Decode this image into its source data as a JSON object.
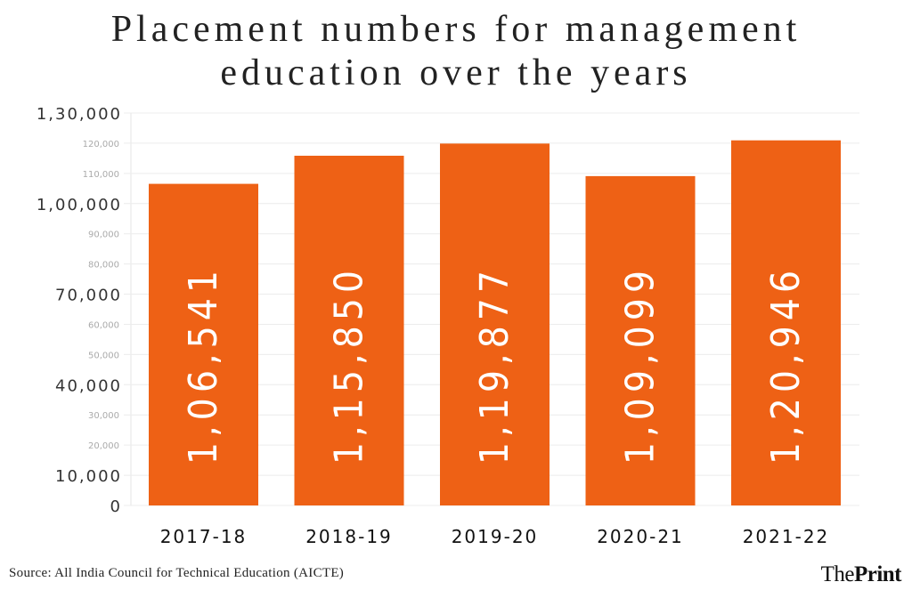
{
  "chart_data": {
    "type": "bar",
    "title": "Placement numbers for management education over the years",
    "title_lines": [
      "Placement numbers for management",
      "education over the years"
    ],
    "categories": [
      "2017-18",
      "2018-19",
      "2019-20",
      "2020-21",
      "2021-22"
    ],
    "values": [
      106541,
      115850,
      119877,
      109099,
      120946
    ],
    "data_labels": [
      "1,06,541",
      "1,15,850",
      "1,19,877",
      "1,09,099",
      "1,20,946"
    ],
    "xlabel": "",
    "ylabel": "",
    "ylim": [
      0,
      130000
    ],
    "y_ticks": [
      {
        "value": 0,
        "label": "0",
        "major": true
      },
      {
        "value": 10000,
        "label": "10,000",
        "major": true
      },
      {
        "value": 20000,
        "label": "20,000",
        "major": false
      },
      {
        "value": 30000,
        "label": "30,000",
        "major": false
      },
      {
        "value": 40000,
        "label": "40,000",
        "major": true
      },
      {
        "value": 50000,
        "label": "50,000",
        "major": false
      },
      {
        "value": 60000,
        "label": "60,000",
        "major": false
      },
      {
        "value": 70000,
        "label": "70,000",
        "major": true
      },
      {
        "value": 80000,
        "label": "80,000",
        "major": false
      },
      {
        "value": 90000,
        "label": "90,000",
        "major": false
      },
      {
        "value": 100000,
        "label": "1,00,000",
        "major": true
      },
      {
        "value": 110000,
        "label": "110,000",
        "major": false
      },
      {
        "value": 120000,
        "label": "120,000",
        "major": false
      },
      {
        "value": 130000,
        "label": "1,30,000",
        "major": true
      }
    ],
    "grid": true,
    "legend": "none",
    "bar_color": "#ee6115"
  },
  "source": "Source: All India Council for Technical Education (AICTE)",
  "logo": {
    "part1": "The",
    "part2": "Print"
  }
}
